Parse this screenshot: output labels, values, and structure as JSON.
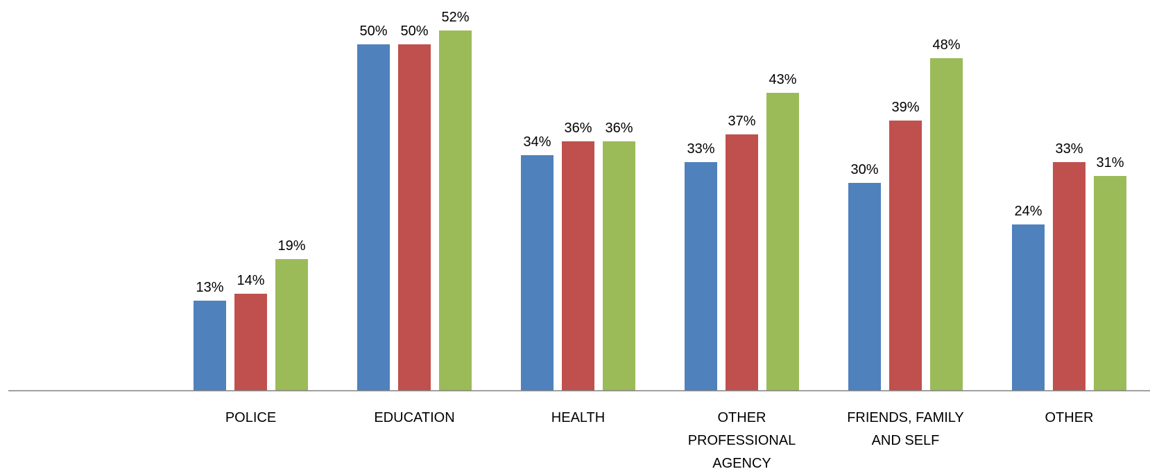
{
  "chart_data": {
    "type": "bar",
    "categories": [
      "POLICE",
      "EDUCATION",
      "HEALTH",
      "OTHER PROFESSIONAL AGENCY",
      "FRIENDS, FAMILY AND SELF",
      "OTHER"
    ],
    "category_lines": [
      [
        "POLICE"
      ],
      [
        "EDUCATION"
      ],
      [
        "HEALTH"
      ],
      [
        "OTHER",
        "PROFESSIONAL",
        "AGENCY"
      ],
      [
        "FRIENDS, FAMILY",
        "AND SELF"
      ],
      [
        "OTHER"
      ]
    ],
    "series": [
      {
        "values": [
          13,
          50,
          34,
          33,
          30,
          24
        ],
        "labels": [
          "13%",
          "50%",
          "34%",
          "33%",
          "30%",
          "24%"
        ],
        "color": "#4F81BD"
      },
      {
        "values": [
          14,
          50,
          36,
          37,
          39,
          33
        ],
        "labels": [
          "14%",
          "50%",
          "36%",
          "37%",
          "39%",
          "33%"
        ],
        "color": "#C0504D"
      },
      {
        "values": [
          19,
          52,
          36,
          43,
          48,
          31
        ],
        "labels": [
          "19%",
          "52%",
          "36%",
          "43%",
          "48%",
          "31%"
        ],
        "color": "#9BBB59"
      }
    ],
    "ylim": [
      0,
      52
    ],
    "grid": false,
    "legend": "none",
    "axis_color": "#808080"
  }
}
